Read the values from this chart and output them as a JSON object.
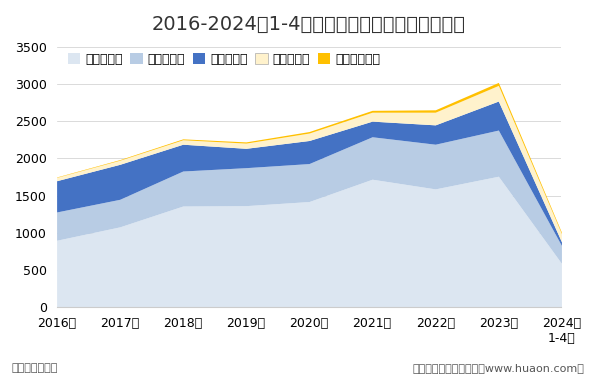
{
  "title": "2016-2024年1-4月福建省各发电类型发电量统计",
  "years": [
    "2016年",
    "2017年",
    "2018年",
    "2019年",
    "2020年",
    "2021年",
    "2022年",
    "2023年",
    "2024年\n1-4月"
  ],
  "xlabel_bottom": "单位：亿千瓦时",
  "xlabel_right": "制图：华经产业研究院（www.huaon.com）",
  "ylim": [
    0,
    3500
  ],
  "yticks": [
    0,
    500,
    1000,
    1500,
    2000,
    2500,
    3000,
    3500
  ],
  "series": {
    "火力发电量": {
      "values": [
        900,
        1080,
        1360,
        1365,
        1420,
        1720,
        1590,
        1760,
        590
      ],
      "color": "#dce6f1"
    },
    "核能发电量": {
      "values": [
        380,
        370,
        470,
        510,
        510,
        570,
        600,
        620,
        240
      ],
      "color": "#b8cce4"
    },
    "水力发电量": {
      "values": [
        420,
        470,
        360,
        260,
        310,
        210,
        260,
        390,
        50
      ],
      "color": "#4472c4"
    },
    "风力发电量": {
      "values": [
        45,
        55,
        60,
        70,
        100,
        120,
        170,
        210,
        110
      ],
      "color": "#fff2cc"
    },
    "太阳能发电量": {
      "values": [
        5,
        8,
        12,
        16,
        20,
        25,
        32,
        40,
        18
      ],
      "color": "#ffc000"
    }
  },
  "background_color": "#ffffff",
  "title_fontsize": 14,
  "legend_fontsize": 9,
  "tick_fontsize": 9,
  "footer_fontsize": 8
}
